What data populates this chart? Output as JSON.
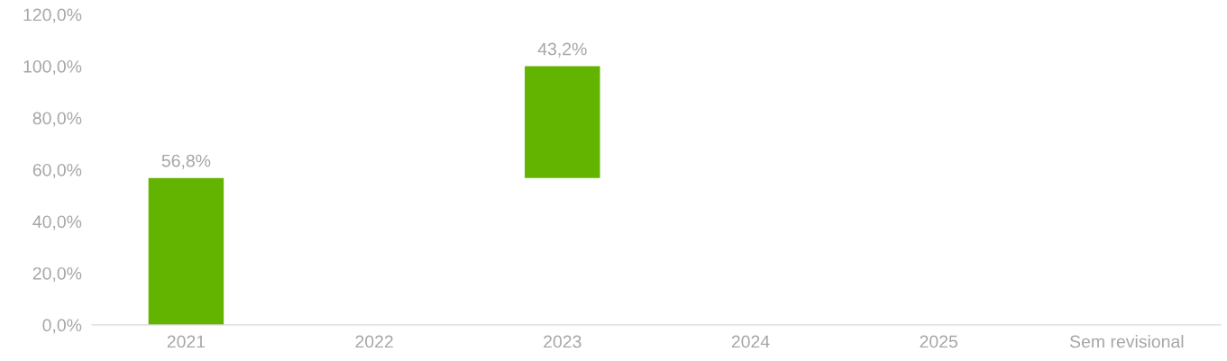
{
  "chart_data": {
    "type": "bar",
    "categories": [
      "2021",
      "2022",
      "2023",
      "2024",
      "2025",
      "Sem revisional"
    ],
    "values": [
      56.8,
      null,
      43.2,
      null,
      null,
      null
    ],
    "base": [
      0,
      null,
      56.8,
      null,
      null,
      null
    ],
    "value_labels": [
      "56,8%",
      null,
      "43,2%",
      null,
      null,
      null
    ],
    "color": "#63b400",
    "ylim": [
      0,
      120
    ],
    "yticks": [
      {
        "value": 0,
        "label": "0,0%"
      },
      {
        "value": 20,
        "label": "20,0%"
      },
      {
        "value": 40,
        "label": "40,0%"
      },
      {
        "value": 60,
        "label": "60,0%"
      },
      {
        "value": 80,
        "label": "80,0%"
      },
      {
        "value": 100,
        "label": "100,0%"
      },
      {
        "value": 120,
        "label": "120,0%"
      }
    ],
    "grid": false,
    "legend": false
  }
}
